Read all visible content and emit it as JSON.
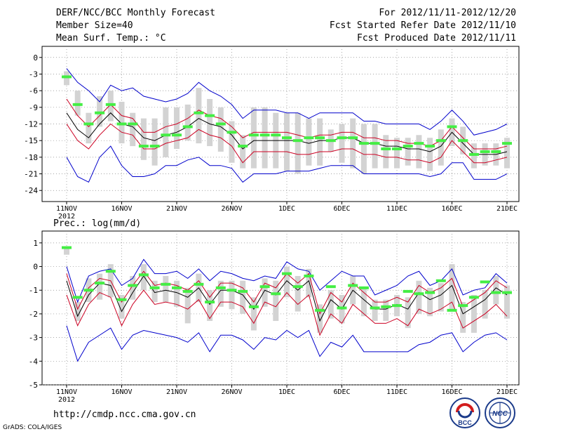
{
  "header": {
    "title": "DERF/NCC/BCC Monthly Forecast",
    "member": "Member Size=40",
    "variable": "Mean Surf. Temp.: °C",
    "period": "For 2012/11/11-2012/12/20",
    "started": "Fcst Started Refer Date 2012/11/10",
    "produced": "Fcst Produced Date 2012/11/11"
  },
  "footer": {
    "url": "http://cmdp.ncc.cma.gov.cn",
    "grads": "GrADS: COLA/IGES",
    "logo_bcc": "BCC",
    "logo_ncc": "NCC"
  },
  "colors": {
    "median": "#000000",
    "inner_band": "#cc0022",
    "outer_band": "#0000cc",
    "box": "#d3d3d3",
    "marker": "#44ee44"
  },
  "chart_data": [
    {
      "type": "line",
      "title": "Mean Surf. Temp.: °C",
      "xlabel": "",
      "ylabel": "",
      "ylim": [
        -26,
        2
      ],
      "yticks": [
        0,
        -3,
        -6,
        -9,
        -12,
        -15,
        -18,
        -21,
        -24
      ],
      "x_tick_labels": [
        "11NOV",
        "16NOV",
        "21NOV",
        "26NOV",
        "1DEC",
        "6DEC",
        "11DEC",
        "16DEC",
        "21DEC"
      ],
      "x_year_label": "2012",
      "x_range_days": [
        0,
        40
      ],
      "median": [
        -10,
        -13,
        -14.5,
        -12,
        -10,
        -12,
        -12.5,
        -14.5,
        -15,
        -14,
        -13.5,
        -12.5,
        -11,
        -12,
        -12.5,
        -14,
        -16.5,
        -15,
        -15,
        -15,
        -15,
        -15,
        -15.5,
        -15,
        -15,
        -14.5,
        -14.5,
        -15.5,
        -15.5,
        -16,
        -16,
        -16.5,
        -16.5,
        -17,
        -16,
        -13.5,
        -15.5,
        -17.5,
        -17.5,
        -17.5,
        -17
      ],
      "upper_band": [
        -7.5,
        -10.5,
        -12.5,
        -10.5,
        -8.5,
        -10.5,
        -11,
        -13.5,
        -13.5,
        -12.5,
        -12,
        -11,
        -9.5,
        -10.5,
        -11,
        -12.5,
        -14.5,
        -13.5,
        -13.5,
        -13.5,
        -13.5,
        -14,
        -14.5,
        -14,
        -14,
        -13.5,
        -13.5,
        -14.5,
        -14.5,
        -15,
        -15,
        -15.5,
        -15.5,
        -16,
        -15,
        -12.5,
        -14.5,
        -16.5,
        -16.5,
        -16.5,
        -16
      ],
      "lower_band": [
        -12,
        -15,
        -16.5,
        -14,
        -12,
        -13.5,
        -14,
        -16.5,
        -16.5,
        -15.5,
        -15,
        -14.5,
        -13,
        -14,
        -14.5,
        -16,
        -19,
        -17,
        -17,
        -17,
        -17,
        -17.5,
        -17.5,
        -17,
        -17,
        -16.5,
        -16.5,
        -17.5,
        -17.5,
        -18,
        -18,
        -18.5,
        -18.5,
        -19,
        -18,
        -15,
        -17,
        -19,
        -19,
        -18.5,
        -18
      ],
      "upper_extreme": [
        -2,
        -4.5,
        -6,
        -8,
        -5,
        -6,
        -5.5,
        -7,
        -7.5,
        -8,
        -7.5,
        -6.5,
        -4.5,
        -6,
        -7,
        -8.5,
        -11,
        -9.5,
        -9.5,
        -9.5,
        -10,
        -10,
        -11,
        -10,
        -10,
        -10,
        -10,
        -11.5,
        -11.5,
        -12,
        -12,
        -12,
        -12,
        -13,
        -11.5,
        -9.5,
        -11.5,
        -14,
        -13.5,
        -13,
        -12
      ],
      "lower_extreme": [
        -18,
        -21.5,
        -22.5,
        -18,
        -16,
        -19.5,
        -21.5,
        -21.5,
        -21,
        -19.5,
        -19.5,
        -18.5,
        -18,
        -19.5,
        -19.5,
        -20,
        -22.5,
        -21,
        -21,
        -21,
        -20.5,
        -20.5,
        -20.5,
        -20,
        -19.5,
        -19.5,
        -19.5,
        -21,
        -21,
        -21,
        -21,
        -21,
        -21,
        -21.5,
        -21,
        -19,
        -19,
        -22,
        -22,
        -22,
        -21
      ],
      "box_high": [
        -2.5,
        -6,
        -10,
        -7,
        -6,
        -8,
        -10,
        -11,
        -11,
        -9,
        -9,
        -8.5,
        -5.5,
        -7.5,
        -9,
        -11.5,
        -14,
        -9,
        -9,
        -10,
        -10,
        -10,
        -11,
        -11,
        -13,
        -12,
        -11,
        -12,
        -12,
        -14,
        -14.5,
        -14.5,
        -14,
        -14.5,
        -13,
        -11,
        -12.5,
        -15.5,
        -15.5,
        -15.5,
        -14.5
      ],
      "box_low": [
        -5,
        -10.5,
        -15.5,
        -12.5,
        -11.5,
        -15.5,
        -16,
        -18.5,
        -19.5,
        -18,
        -16.5,
        -15,
        -15.5,
        -16,
        -17,
        -19,
        -20,
        -20,
        -20,
        -20,
        -20.5,
        -21,
        -19.5,
        -19.5,
        -17,
        -19,
        -20,
        -21,
        -20,
        -20,
        -20,
        -19.5,
        -20,
        -20.5,
        -19.5,
        -16,
        -17.5,
        -20,
        -19.5,
        -19.5,
        -20
      ],
      "box_days": [
        0,
        1,
        2,
        3,
        4,
        5,
        6,
        7,
        8,
        9,
        10,
        11,
        12,
        13,
        14,
        15,
        16,
        17,
        18,
        19,
        20,
        21,
        22,
        23,
        24,
        25,
        26,
        27,
        28,
        29,
        30,
        31,
        32,
        33,
        34,
        35,
        36,
        37,
        38,
        39,
        40
      ],
      "marker_days": [
        0,
        1,
        2,
        3,
        4,
        5,
        6,
        7,
        8,
        9,
        10,
        11,
        12,
        13,
        14,
        15,
        16,
        17,
        18,
        19,
        20,
        21,
        22,
        23,
        24,
        25,
        26,
        27,
        28,
        29,
        30,
        31,
        32,
        33,
        34,
        35,
        36,
        37,
        38,
        39,
        40
      ],
      "marker_values": [
        -3.5,
        -8.5,
        -12,
        -10,
        -8.5,
        -12,
        -12,
        -16,
        -16,
        -14,
        -14,
        -12.5,
        -10,
        -10.5,
        -12,
        -13.5,
        -16,
        -14,
        -14,
        -14,
        -14.5,
        -15,
        -14.5,
        -14.5,
        -15,
        -14.5,
        -14.5,
        -15.5,
        -15.5,
        -16.5,
        -16.5,
        -16,
        -15.5,
        -16,
        -15,
        -12.5,
        -15,
        -17.5,
        -17,
        -17,
        -15.5
      ]
    },
    {
      "type": "line",
      "title": "Prec.: log(mm/d)",
      "xlabel": "",
      "ylabel": "",
      "ylim": [
        -5,
        1.5
      ],
      "yticks": [
        1,
        0,
        -1,
        -2,
        -3,
        -4,
        -5
      ],
      "x_tick_labels": [
        "11NOV",
        "16NOV",
        "21NOV",
        "26NOV",
        "1DEC",
        "6DEC",
        "11DEC",
        "16DEC",
        "21DEC"
      ],
      "x_year_label": "2012",
      "x_range_days": [
        0,
        40
      ],
      "median": [
        -0.6,
        -2.1,
        -1.2,
        -0.7,
        -0.8,
        -1.9,
        -1.1,
        -0.4,
        -1.1,
        -1.0,
        -1.1,
        -1.3,
        -0.9,
        -1.6,
        -1.0,
        -1.0,
        -1.2,
        -1.8,
        -1.0,
        -1.2,
        -0.6,
        -1.0,
        -0.6,
        -2.3,
        -1.4,
        -1.8,
        -1.0,
        -1.4,
        -1.8,
        -1.8,
        -1.6,
        -1.8,
        -1.1,
        -1.4,
        -1.2,
        -0.8,
        -2.0,
        -1.7,
        -1.4,
        -0.9,
        -1.2
      ],
      "upper_band": [
        -0.3,
        -1.8,
        -0.9,
        -0.5,
        -0.6,
        -1.5,
        -0.8,
        -0.2,
        -0.8,
        -0.7,
        -0.8,
        -1.0,
        -0.6,
        -1.3,
        -0.7,
        -0.7,
        -0.9,
        -1.5,
        -0.7,
        -0.9,
        -0.3,
        -0.7,
        -0.3,
        -2.0,
        -1.1,
        -1.5,
        -0.7,
        -1.1,
        -1.5,
        -1.5,
        -1.3,
        -1.5,
        -0.8,
        -1.1,
        -0.9,
        -0.5,
        -1.7,
        -1.4,
        -1.1,
        -0.6,
        -0.9
      ],
      "lower_band": [
        -1.2,
        -2.5,
        -1.6,
        -1.1,
        -1.3,
        -2.5,
        -1.6,
        -1.0,
        -1.6,
        -1.5,
        -1.6,
        -1.8,
        -1.4,
        -2.2,
        -1.5,
        -1.5,
        -1.7,
        -2.4,
        -1.5,
        -1.7,
        -1.1,
        -1.6,
        -1.2,
        -2.9,
        -2.0,
        -2.4,
        -1.6,
        -2.0,
        -2.4,
        -2.4,
        -2.2,
        -2.5,
        -1.8,
        -2.0,
        -1.8,
        -1.5,
        -2.6,
        -2.3,
        -2.0,
        -1.6,
        -2.1
      ],
      "upper_extreme": [
        0.0,
        -1.5,
        -0.4,
        -0.2,
        -0.1,
        -0.8,
        -0.5,
        0.3,
        -0.3,
        -0.3,
        -0.2,
        -0.5,
        -0.1,
        -0.6,
        -0.2,
        -0.3,
        -0.5,
        -0.6,
        -0.4,
        -0.5,
        0.2,
        -0.1,
        -0.2,
        -1.0,
        -0.6,
        -0.2,
        -0.4,
        -0.4,
        -1.2,
        -1.0,
        -0.8,
        -0.4,
        -0.2,
        -0.8,
        -0.6,
        -0.1,
        -1.2,
        -1.0,
        -0.9,
        -0.3,
        -0.7
      ],
      "lower_extreme": [
        -2.5,
        -4.0,
        -3.2,
        -2.9,
        -2.6,
        -3.5,
        -2.9,
        -2.7,
        -2.8,
        -2.9,
        -3.0,
        -3.2,
        -2.8,
        -3.6,
        -2.9,
        -2.9,
        -3.1,
        -3.5,
        -3.0,
        -3.1,
        -2.7,
        -3.0,
        -2.7,
        -3.8,
        -3.2,
        -3.4,
        -2.9,
        -3.6,
        -3.6,
        -3.6,
        -3.6,
        -3.6,
        -3.3,
        -3.2,
        -2.9,
        -2.8,
        -3.6,
        -3.2,
        -2.9,
        -2.8,
        -3.1
      ],
      "box_high": [
        0.8,
        -1.5,
        -0.5,
        -0.3,
        0.1,
        -1.2,
        -0.4,
        0.1,
        -0.6,
        -0.4,
        -0.6,
        -0.9,
        -0.3,
        -1.0,
        -0.6,
        -0.6,
        -0.6,
        -1.3,
        -0.5,
        -0.6,
        0.0,
        -0.4,
        -0.1,
        -1.6,
        -1.0,
        -1.2,
        -0.4,
        -0.9,
        -1.4,
        -1.4,
        -1.2,
        -1.3,
        -0.6,
        -0.9,
        -0.7,
        0.1,
        -1.5,
        -1.2,
        -1.0,
        -0.4,
        -0.8
      ],
      "box_low": [
        0.5,
        -2.3,
        -1.5,
        -1.4,
        -1.3,
        -2.2,
        -1.4,
        -1.0,
        -1.5,
        -1.5,
        -1.7,
        -2.4,
        -1.5,
        -2.3,
        -1.7,
        -1.8,
        -2.0,
        -2.7,
        -1.7,
        -2.3,
        -1.3,
        -1.9,
        -1.3,
        -2.8,
        -2.2,
        -2.4,
        -1.6,
        -2.1,
        -2.3,
        -2.3,
        -2.1,
        -2.6,
        -2.0,
        -2.1,
        -1.9,
        -1.9,
        -2.8,
        -2.8,
        -2.2,
        -1.6,
        -2.2
      ],
      "box_days": [
        0,
        1,
        2,
        3,
        4,
        5,
        6,
        7,
        8,
        9,
        10,
        11,
        12,
        13,
        14,
        15,
        16,
        17,
        18,
        19,
        20,
        21,
        22,
        23,
        24,
        25,
        26,
        27,
        28,
        29,
        30,
        31,
        32,
        33,
        34,
        35,
        36,
        37,
        38,
        39,
        40
      ],
      "marker_days": [
        0,
        1,
        2,
        3,
        4,
        5,
        6,
        7,
        8,
        9,
        10,
        11,
        12,
        13,
        14,
        15,
        16,
        17,
        18,
        19,
        20,
        21,
        22,
        23,
        24,
        25,
        26,
        27,
        28,
        29,
        30,
        31,
        32,
        33,
        34,
        35,
        36,
        37,
        38,
        39,
        40
      ],
      "marker_values": [
        0.8,
        -1.3,
        -1.0,
        -0.7,
        -0.2,
        -1.4,
        -0.8,
        -0.35,
        -0.9,
        -0.75,
        -0.9,
        -1.05,
        -0.75,
        -1.5,
        -0.9,
        -1.0,
        -1.05,
        -1.7,
        -0.85,
        -1.15,
        -0.3,
        -0.85,
        -0.4,
        -1.85,
        -0.85,
        -1.75,
        -0.8,
        -0.9,
        -1.75,
        -1.7,
        -1.65,
        -1.05,
        -1.15,
        -1.1,
        -0.6,
        -1.85,
        -1.65,
        -1.3,
        -0.65,
        -1.1,
        -1.1
      ]
    }
  ]
}
